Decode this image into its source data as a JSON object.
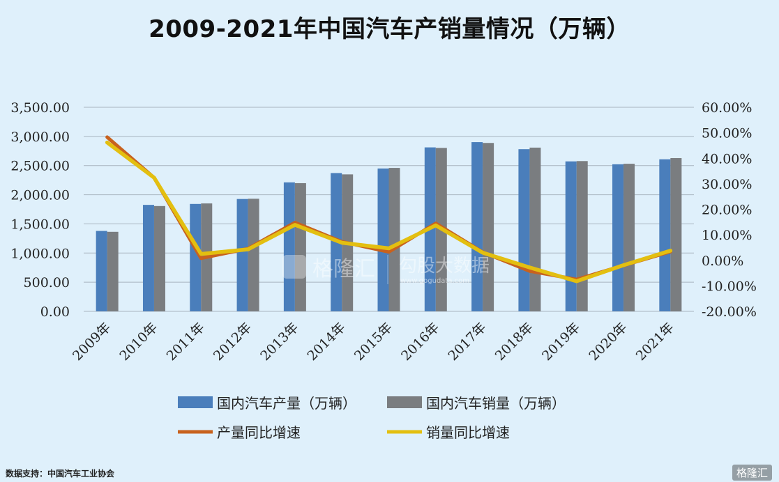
{
  "title": "2009-2021年中国汽车产销量情况（万辆）",
  "source": "数据支持：中国汽车工业协会",
  "watermark": {
    "center_brand": "格隆汇",
    "center_sub": "勾股大数据",
    "center_url": "www.gogudata.com",
    "corner": "格隆汇"
  },
  "colors": {
    "production_bar": "#4a7ebb",
    "sales_bar": "#7a7d80",
    "production_growth": "#c8621e",
    "sales_growth": "#e3bf10",
    "grid": "#a8b4bf"
  },
  "chart_data": {
    "type": "bar",
    "title": "2009-2021年中国汽车产销量情况（万辆）",
    "categories": [
      "2009年",
      "2010年",
      "2011年",
      "2012年",
      "2013年",
      "2014年",
      "2015年",
      "2016年",
      "2017年",
      "2018年",
      "2019年",
      "2020年",
      "2021年"
    ],
    "y_left": {
      "ylim": [
        0,
        3500
      ],
      "ticks": [
        "0.00",
        "500.00",
        "1,000.00",
        "1,500.00",
        "2,000.00",
        "2,500.00",
        "3,000.00",
        "3,500.00"
      ],
      "tick_values": [
        0,
        500,
        1000,
        1500,
        2000,
        2500,
        3000,
        3500
      ]
    },
    "y_right": {
      "ylim": [
        -20,
        60
      ],
      "ticks": [
        "-20.00%",
        "-10.00%",
        "0.00%",
        "10.00%",
        "20.00%",
        "30.00%",
        "40.00%",
        "50.00%",
        "60.00%"
      ],
      "tick_values": [
        -20,
        -10,
        0,
        10,
        20,
        30,
        40,
        50,
        60
      ]
    },
    "series": [
      {
        "name": "国内汽车产量（万辆）",
        "type": "bar",
        "axis": "left",
        "values": [
          1379,
          1826,
          1842,
          1927,
          2212,
          2372,
          2450,
          2812,
          2902,
          2781,
          2572,
          2522,
          2608
        ]
      },
      {
        "name": "国内汽车销量（万辆）",
        "type": "bar",
        "axis": "left",
        "values": [
          1364,
          1806,
          1851,
          1931,
          2198,
          2349,
          2460,
          2803,
          2888,
          2808,
          2577,
          2531,
          2628
        ]
      },
      {
        "name": "产量同比增速",
        "type": "line",
        "axis": "right",
        "values": [
          48.3,
          32.4,
          0.8,
          4.6,
          14.8,
          7.3,
          3.3,
          14.5,
          3.2,
          -4.2,
          -7.5,
          -2.0,
          3.4
        ]
      },
      {
        "name": "销量同比增速",
        "type": "line",
        "axis": "right",
        "values": [
          46.2,
          32.4,
          2.5,
          4.3,
          13.9,
          6.9,
          4.7,
          13.7,
          3.0,
          -2.8,
          -8.2,
          -1.9,
          3.8
        ]
      }
    ],
    "grid": true,
    "legend": "bottom"
  }
}
